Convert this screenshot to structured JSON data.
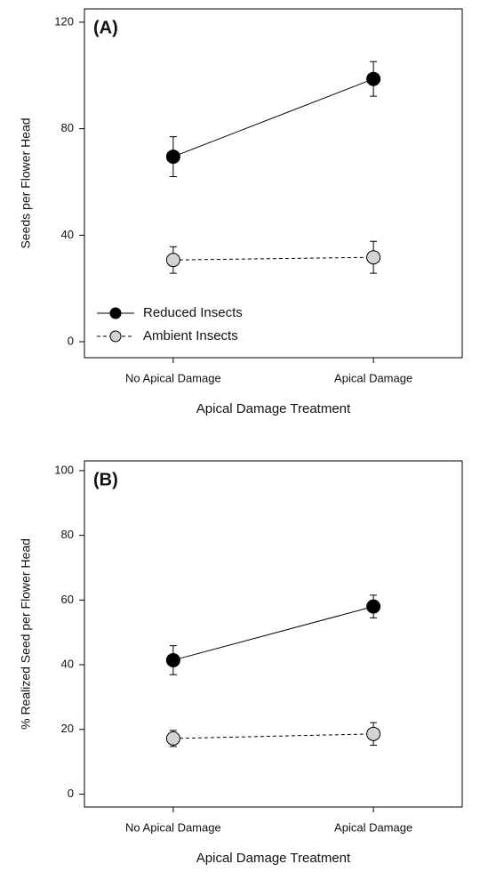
{
  "chart_data": [
    {
      "type": "line",
      "annotation": "(A)",
      "ylabel": "Seeds per Flower Head",
      "xlabel": "Apical Damage Treatment",
      "categories": [
        "No Apical Damage",
        "Apical Damage"
      ],
      "ylim": [
        -6,
        125
      ],
      "yticks": [
        0,
        40,
        80,
        120
      ],
      "legend": "lower left",
      "series": [
        {
          "name": "Reduced Insects",
          "color": "#000000",
          "linestyle": "solid",
          "values": [
            69.5,
            98.7
          ],
          "errors": [
            7.5,
            6.5
          ]
        },
        {
          "name": "Ambient Insects",
          "color": "#d3d3d3",
          "linestyle": "dashed",
          "values": [
            30.7,
            31.7
          ],
          "errors": [
            5,
            6
          ]
        }
      ]
    },
    {
      "type": "line",
      "annotation": "(B)",
      "ylabel": "% Realized Seed per Flower Head",
      "xlabel": "Apical Damage Treatment",
      "categories": [
        "No Apical Damage",
        "Apical Damage"
      ],
      "ylim": [
        -4,
        103
      ],
      "yticks": [
        0,
        20,
        40,
        60,
        80,
        100
      ],
      "series": [
        {
          "color": "#000000",
          "linestyle": "solid",
          "values": [
            41.4,
            58
          ],
          "errors": [
            4.5,
            3.5
          ]
        },
        {
          "color": "#d3d3d3",
          "linestyle": "dashed",
          "values": [
            17.2,
            18.6
          ],
          "errors": [
            2.5,
            3.5
          ]
        }
      ]
    }
  ]
}
